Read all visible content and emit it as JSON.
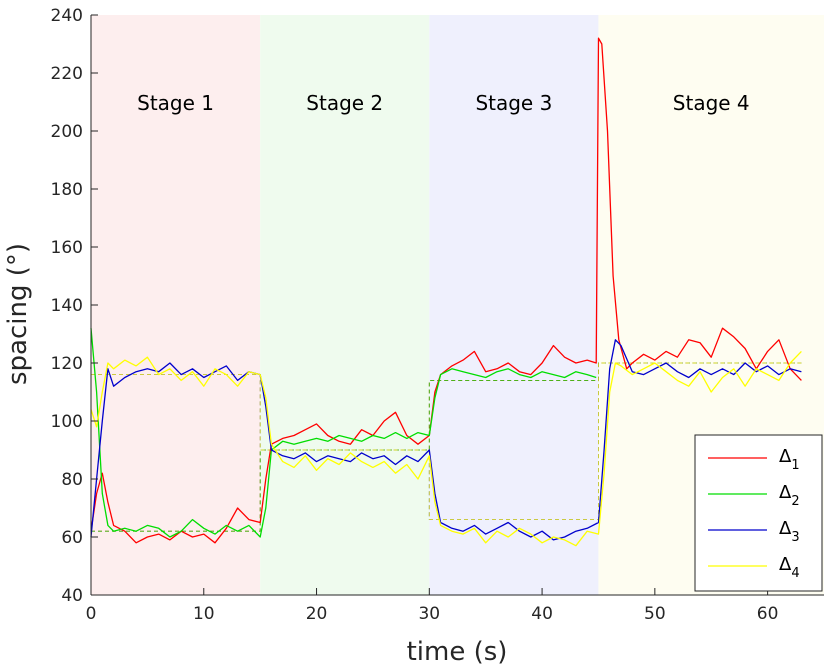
{
  "chart_data": {
    "type": "line",
    "xlabel": "time (s)",
    "ylabel": "spacing (°)",
    "xlim": [
      0,
      65
    ],
    "ylim": [
      40,
      240
    ],
    "xticks": [
      0,
      10,
      20,
      30,
      40,
      50,
      60
    ],
    "yticks": [
      40,
      60,
      80,
      100,
      120,
      140,
      160,
      180,
      200,
      220,
      240
    ],
    "grid": false,
    "legend_position": "bottom-right",
    "stages": [
      {
        "label": "Stage 1",
        "start": 0,
        "end": 15,
        "color": "#fdeeee"
      },
      {
        "label": "Stage 2",
        "start": 15,
        "end": 30,
        "color": "#effbee"
      },
      {
        "label": "Stage 3",
        "start": 30,
        "end": 45,
        "color": "#eff0fd"
      },
      {
        "label": "Stage 4",
        "start": 45,
        "end": 65,
        "color": "#fefdf1"
      }
    ],
    "targets": [
      {
        "color": "#ff0000",
        "x": [
          0,
          15,
          15,
          30,
          30,
          45,
          45,
          63
        ],
        "y": [
          62,
          62,
          90,
          90,
          114,
          114,
          120,
          120
        ]
      },
      {
        "color": "#00dd00",
        "x": [
          0,
          15,
          15,
          30,
          30,
          45,
          45,
          63
        ],
        "y": [
          62,
          62,
          90,
          90,
          114,
          114,
          120,
          120
        ]
      },
      {
        "color": "#0000cc",
        "x": [
          0,
          15,
          15,
          30,
          30,
          45,
          45,
          63
        ],
        "y": [
          116,
          116,
          90,
          90,
          66,
          66,
          120,
          120
        ]
      },
      {
        "color": "#ffff00",
        "x": [
          0,
          15,
          15,
          30,
          30,
          45,
          45,
          63
        ],
        "y": [
          116,
          116,
          90,
          90,
          66,
          66,
          120,
          120
        ]
      }
    ],
    "series": [
      {
        "name": "Δ1",
        "legend_main": "Δ",
        "legend_sub": "1",
        "color": "#ff0000",
        "x": [
          0,
          0.5,
          1,
          1.5,
          2,
          3,
          4,
          5,
          6,
          7,
          8,
          9,
          10,
          11,
          12,
          13,
          14,
          15,
          15.5,
          16,
          17,
          18,
          19,
          20,
          21,
          22,
          23,
          24,
          25,
          26,
          27,
          28,
          29,
          30,
          30.5,
          31,
          32,
          33,
          34,
          35,
          36,
          37,
          38,
          39,
          40,
          41,
          42,
          43,
          44,
          44.8,
          45,
          45.3,
          45.8,
          46.3,
          46.8,
          47.5,
          48,
          49,
          50,
          51,
          52,
          53,
          54,
          55,
          56,
          57,
          58,
          59,
          60,
          61,
          62,
          63
        ],
        "y": [
          62,
          75,
          82,
          72,
          64,
          62,
          58,
          60,
          61,
          59,
          62,
          60,
          61,
          58,
          63,
          70,
          66,
          65,
          80,
          92,
          94,
          95,
          97,
          99,
          95,
          93,
          92,
          97,
          95,
          100,
          103,
          95,
          92,
          95,
          110,
          116,
          119,
          121,
          124,
          117,
          118,
          120,
          117,
          116,
          120,
          126,
          122,
          120,
          121,
          120,
          232,
          230,
          200,
          150,
          128,
          118,
          120,
          123,
          121,
          124,
          122,
          128,
          127,
          122,
          132,
          129,
          125,
          118,
          124,
          128,
          118,
          114
        ]
      },
      {
        "name": "Δ2",
        "legend_main": "Δ",
        "legend_sub": "2",
        "color": "#00dd00",
        "x": [
          0,
          0.5,
          1,
          1.5,
          2,
          3,
          4,
          5,
          6,
          7,
          8,
          9,
          10,
          11,
          12,
          13,
          14,
          15,
          15.5,
          16,
          17,
          18,
          19,
          20,
          21,
          22,
          23,
          24,
          25,
          26,
          27,
          28,
          29,
          30,
          30.5,
          31,
          32,
          33,
          34,
          35,
          36,
          37,
          38,
          39,
          40,
          41,
          42,
          43,
          44,
          44.8
        ],
        "y": [
          132,
          110,
          75,
          64,
          62,
          63,
          62,
          64,
          63,
          60,
          62,
          66,
          63,
          61,
          64,
          62,
          64,
          60,
          70,
          90,
          93,
          92,
          93,
          94,
          93,
          95,
          94,
          93,
          95,
          94,
          96,
          94,
          96,
          95,
          108,
          116,
          118,
          117,
          116,
          115,
          117,
          118,
          116,
          115,
          117,
          116,
          115,
          117,
          116,
          115
        ]
      },
      {
        "name": "Δ3",
        "legend_main": "Δ",
        "legend_sub": "3",
        "color": "#0000cc",
        "x": [
          0,
          0.5,
          1,
          1.5,
          2,
          3,
          4,
          5,
          6,
          7,
          8,
          9,
          10,
          11,
          12,
          13,
          14,
          15,
          15.5,
          16,
          17,
          18,
          19,
          20,
          21,
          22,
          23,
          24,
          25,
          26,
          27,
          28,
          29,
          30,
          30.5,
          31,
          32,
          33,
          34,
          35,
          36,
          37,
          38,
          39,
          40,
          41,
          42,
          43,
          44,
          45,
          45.5,
          46,
          46.5,
          47,
          48,
          49,
          50,
          51,
          52,
          53,
          54,
          55,
          56,
          57,
          58,
          59,
          60,
          61,
          62,
          63
        ],
        "y": [
          60,
          80,
          100,
          118,
          112,
          115,
          117,
          118,
          117,
          120,
          116,
          118,
          115,
          117,
          119,
          114,
          117,
          116,
          105,
          90,
          88,
          87,
          89,
          86,
          88,
          87,
          86,
          89,
          87,
          88,
          85,
          88,
          86,
          90,
          75,
          65,
          63,
          62,
          64,
          61,
          63,
          65,
          62,
          60,
          62,
          59,
          60,
          62,
          63,
          65,
          90,
          118,
          128,
          126,
          117,
          116,
          118,
          120,
          117,
          115,
          118,
          116,
          118,
          116,
          120,
          117,
          119,
          116,
          118,
          117
        ]
      },
      {
        "name": "Δ4",
        "legend_main": "Δ",
        "legend_sub": "4",
        "color": "#ffff00",
        "x": [
          0,
          0.5,
          1,
          1.5,
          2,
          3,
          4,
          5,
          6,
          7,
          8,
          9,
          10,
          11,
          12,
          13,
          14,
          15,
          15.5,
          16,
          17,
          18,
          19,
          20,
          21,
          22,
          23,
          24,
          25,
          26,
          27,
          28,
          29,
          30,
          30.5,
          31,
          32,
          33,
          34,
          35,
          36,
          37,
          38,
          39,
          40,
          41,
          42,
          43,
          44,
          45,
          45.5,
          46,
          46.5,
          47,
          48,
          49,
          50,
          51,
          52,
          53,
          54,
          55,
          56,
          57,
          58,
          59,
          60,
          61,
          62,
          63
        ],
        "y": [
          104,
          98,
          110,
          120,
          118,
          121,
          119,
          122,
          116,
          118,
          114,
          117,
          112,
          118,
          116,
          112,
          117,
          116,
          108,
          92,
          86,
          84,
          88,
          83,
          87,
          85,
          89,
          86,
          84,
          86,
          82,
          85,
          80,
          88,
          72,
          64,
          62,
          61,
          63,
          58,
          62,
          60,
          63,
          61,
          58,
          60,
          59,
          57,
          62,
          61,
          82,
          110,
          120,
          119,
          116,
          118,
          120,
          117,
          114,
          112,
          117,
          110,
          115,
          118,
          112,
          118,
          116,
          114,
          120,
          124
        ]
      }
    ]
  }
}
